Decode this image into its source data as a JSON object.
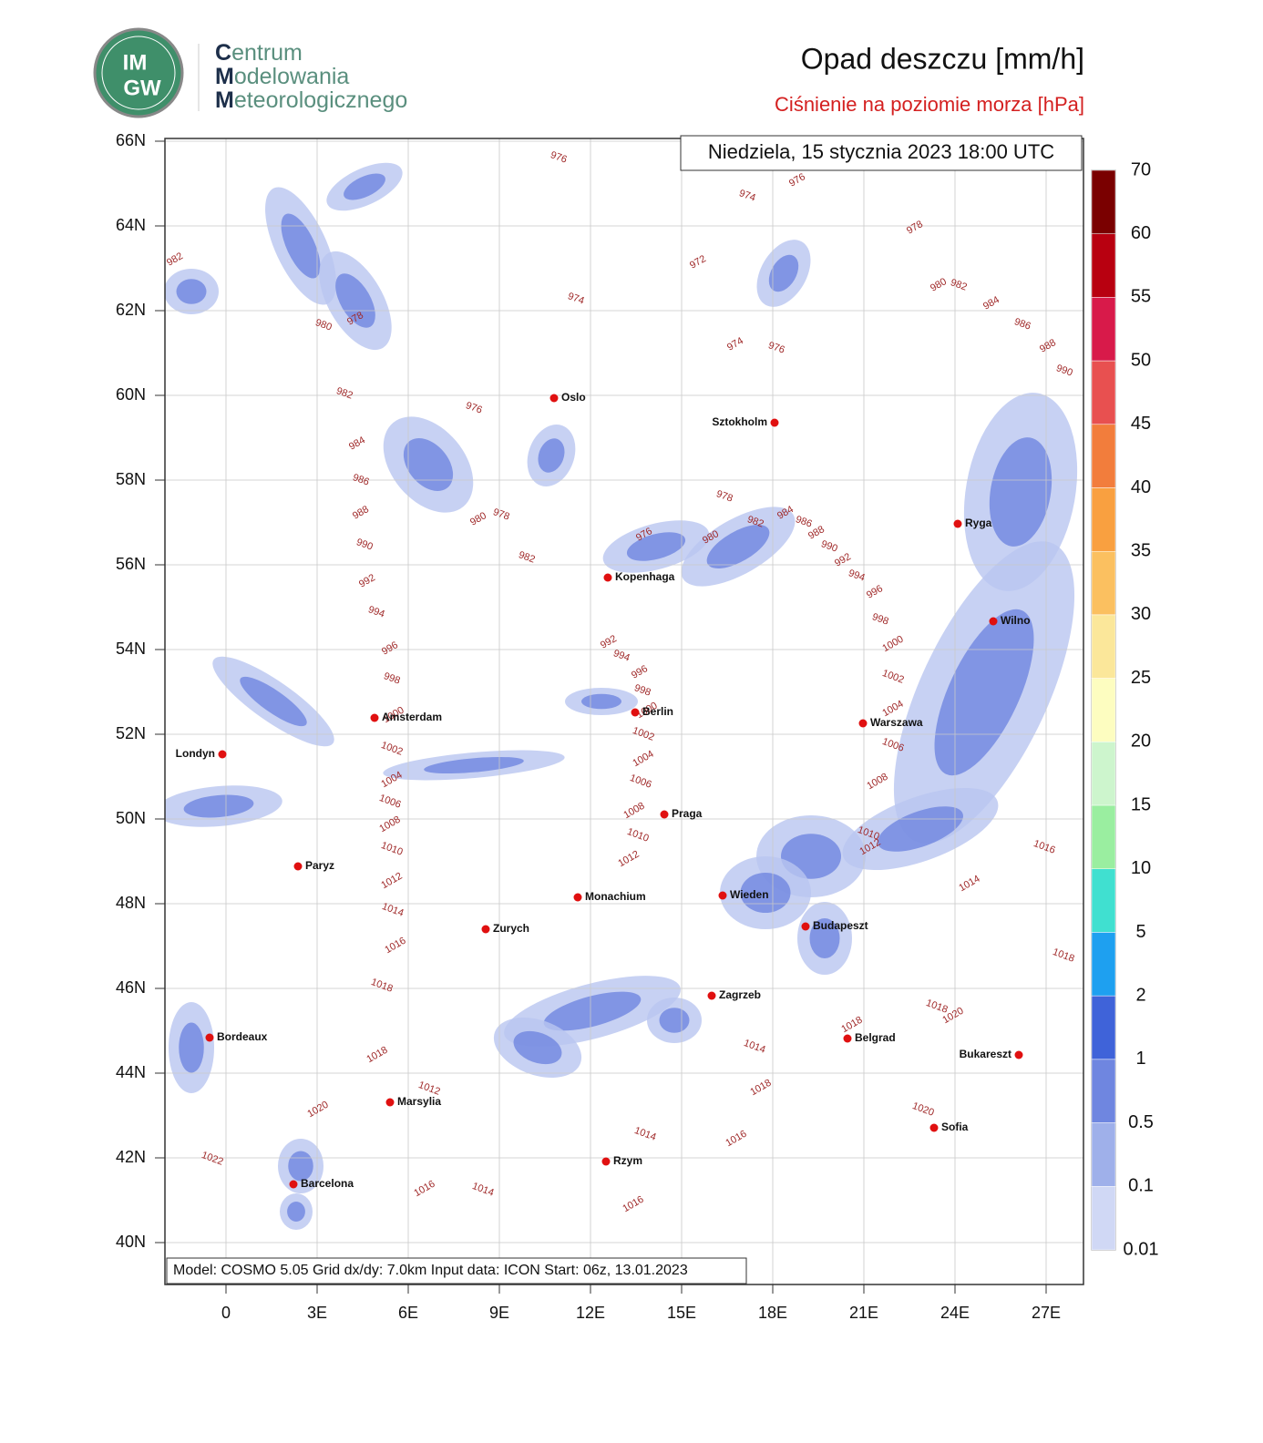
{
  "header": {
    "title": "Opad deszczu [mm/h]",
    "subtitle": "Ciśnienie na poziomie morza [hPa]",
    "logo_text": [
      "IM",
      "GW"
    ],
    "brand": [
      "Centrum",
      "Modelowania",
      "Meteorologicznego"
    ]
  },
  "map": {
    "date": "Niedziela, 15 stycznia 2023 18:00 UTC",
    "footer": "Model: COSMO 5.05  Grid dx/dy: 7.0km  Input data: ICON  Start: 06z, 13.01.2023",
    "lat_ticks": [
      "66N",
      "64N",
      "62N",
      "60N",
      "58N",
      "56N",
      "54N",
      "52N",
      "50N",
      "48N",
      "46N",
      "44N",
      "42N",
      "40N"
    ],
    "lon_ticks": [
      "0",
      "3E",
      "6E",
      "9E",
      "12E",
      "15E",
      "18E",
      "21E",
      "24E",
      "27E"
    ],
    "cities": [
      "Oslo",
      "Sztokholm",
      "Ryga",
      "Kopenhaga",
      "Wilno",
      "Amsterdam",
      "Berlin",
      "Warszawa",
      "Londyn",
      "Praga",
      "Paryz",
      "Monachium",
      "Wieden",
      "Zurych",
      "Budapeszt",
      "Zagrzeb",
      "Bordeaux",
      "Belgrad",
      "Bukareszt",
      "Marsylia",
      "Sofia",
      "Rzym",
      "Barcelona"
    ],
    "isobar_labels": [
      976,
      976,
      974,
      972,
      974,
      982,
      980,
      978,
      982,
      984,
      986,
      988,
      990,
      992,
      994,
      996,
      998,
      1000,
      1002,
      1004,
      1006,
      1008,
      1010,
      1012,
      1014,
      1016,
      1018,
      1018,
      1012,
      1020,
      1022,
      1016,
      1014,
      1016,
      1014,
      1018,
      1014,
      1016,
      1018,
      1020,
      1020,
      1018,
      1016,
      1014,
      1018,
      1000,
      1002,
      1004,
      1006,
      1008,
      1010,
      1012,
      998,
      996,
      994,
      992,
      990,
      988,
      986,
      984,
      982,
      980,
      982,
      984,
      986,
      988,
      990,
      978,
      976,
      974,
      976,
      976,
      978,
      980,
      978,
      980,
      982,
      992,
      994,
      996,
      998,
      1000,
      1002,
      1004,
      1006,
      1008,
      1010,
      1012
    ]
  },
  "colorbar": {
    "ticks": [
      70,
      60,
      55,
      50,
      45,
      40,
      35,
      30,
      25,
      20,
      15,
      10,
      5,
      2,
      1,
      0.5,
      0.1,
      0.01
    ],
    "colors": [
      "#7a0000",
      "#b80010",
      "#d81a4a",
      "#e85050",
      "#f27d3c",
      "#f9a040",
      "#fbc060",
      "#fbe79a",
      "#fdfdc0",
      "#cdf5cd",
      "#9aeea0",
      "#40e0d0",
      "#1ea0f0",
      "#3f63d9",
      "#6f86e0",
      "#9fb0ea",
      "#d0d8f5"
    ]
  }
}
